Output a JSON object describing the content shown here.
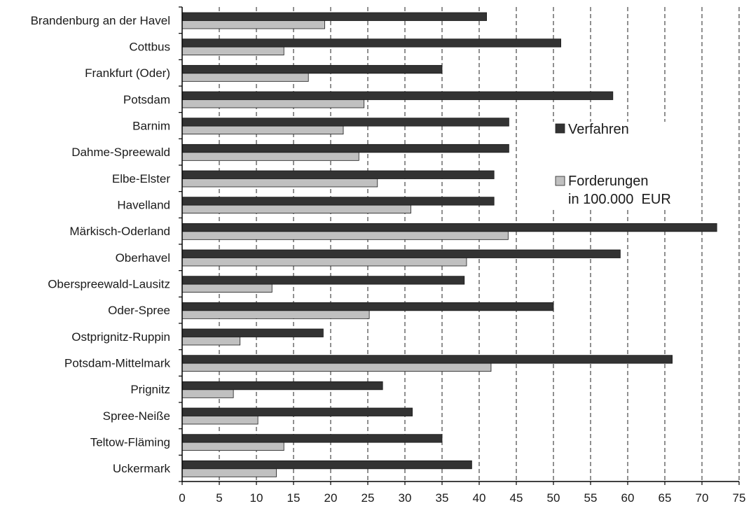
{
  "chart_data": {
    "type": "bar",
    "orientation": "horizontal",
    "categories": [
      "Brandenburg an der Havel",
      "Cottbus",
      "Frankfurt (Oder)",
      "Potsdam",
      "Barnim",
      "Dahme-Spreewald",
      "Elbe-Elster",
      "Havelland",
      "Märkisch-Oderland",
      "Oberhavel",
      "Oberspreewald-Lausitz",
      "Oder-Spree",
      "Ostprignitz-Ruppin",
      "Potsdam-Mittelmark",
      "Prignitz",
      "Spree-Neiße",
      "Teltow-Fläming",
      "Uckermark"
    ],
    "series": [
      {
        "name": "Verfahren",
        "color": "#333333",
        "values": [
          41,
          51,
          35,
          58,
          44,
          44,
          42,
          42,
          72,
          59,
          38,
          50,
          19,
          66,
          27,
          31,
          35,
          39
        ]
      },
      {
        "name": "Forderungen in 100.000 EUR",
        "name_lines": [
          "Forderungen",
          "in 100.000  EUR"
        ],
        "color": "#c0c0c0",
        "values": [
          19.2,
          13.7,
          17.0,
          24.5,
          21.7,
          23.8,
          26.3,
          30.8,
          43.9,
          38.3,
          12.1,
          25.2,
          7.8,
          41.6,
          6.9,
          10.2,
          13.7,
          12.7
        ]
      }
    ],
    "xlim": [
      0,
      75
    ],
    "xticks": [
      "0",
      "5",
      "10",
      "15",
      "20",
      "25",
      "30",
      "35",
      "40",
      "45",
      "50",
      "55",
      "60",
      "65",
      "70",
      "75"
    ],
    "grid": "vertical dashed",
    "legend_position": "right"
  }
}
